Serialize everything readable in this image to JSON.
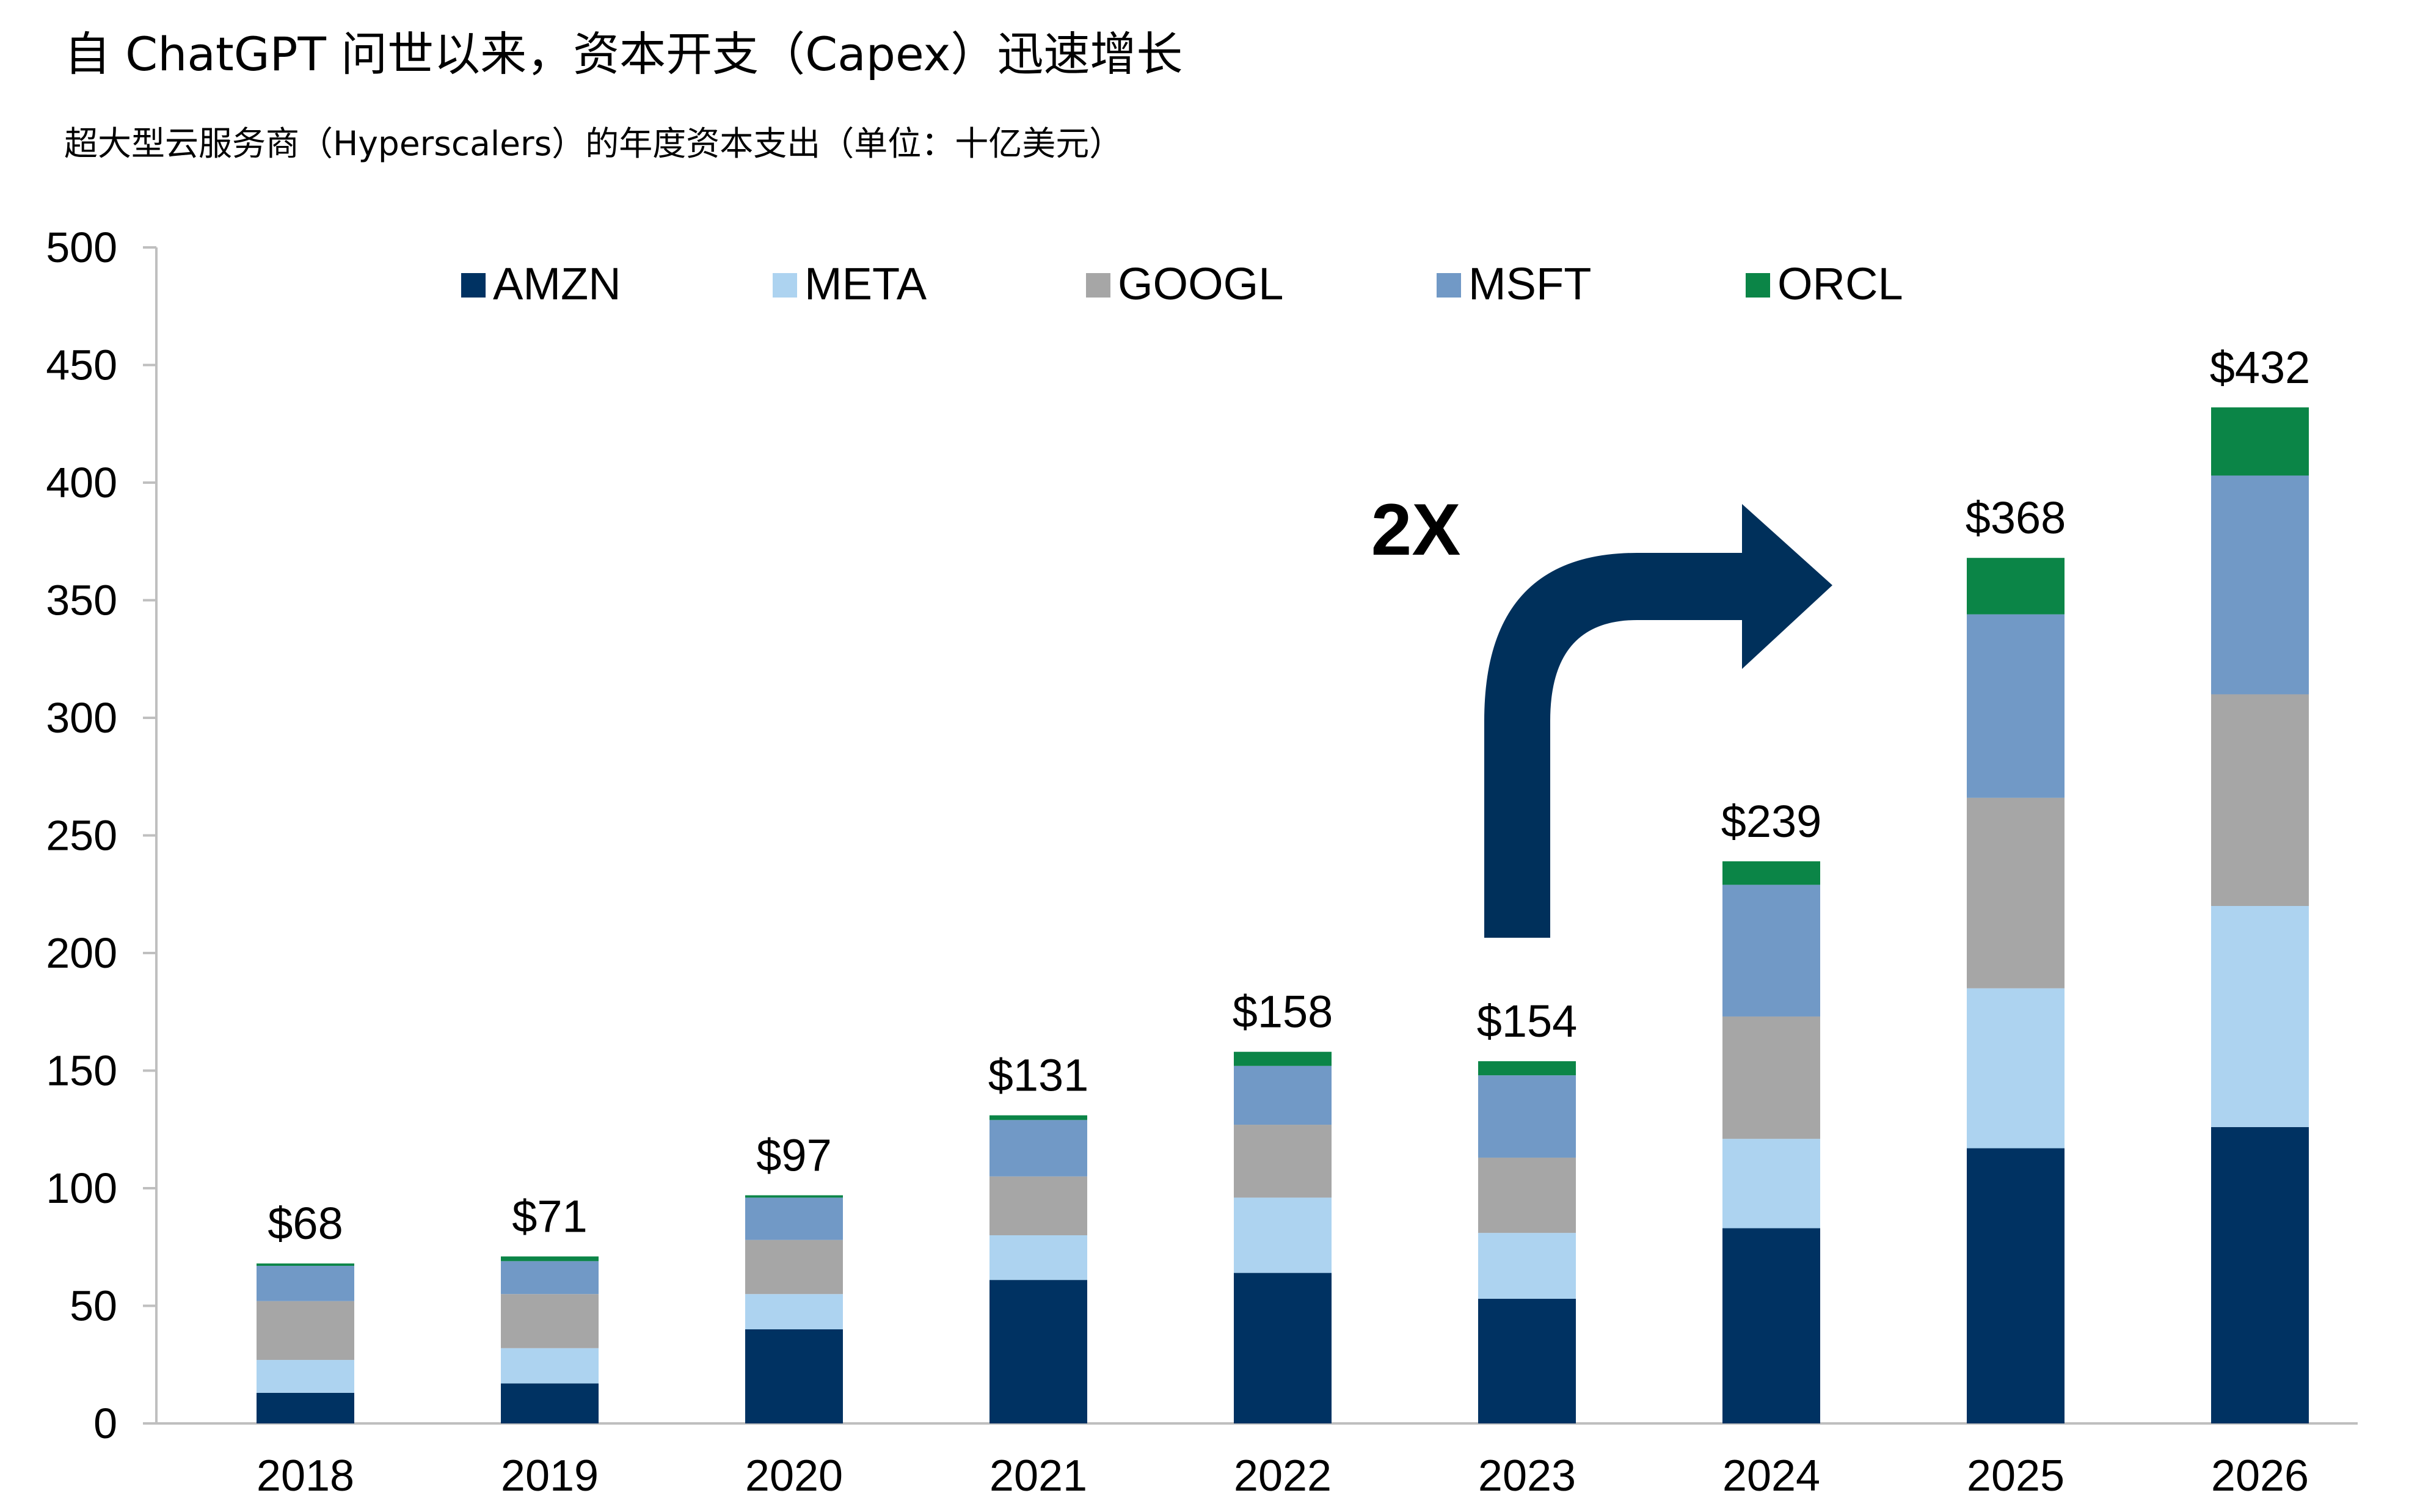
{
  "header": {
    "title": "自 ChatGPT 问世以来，资本开支（Capex）迅速增长",
    "subtitle": "超大型云服务商（Hyperscalers）的年度资本支出（单位：十亿美元）"
  },
  "annotation": {
    "multiplier_label": "2X"
  },
  "chart_data": {
    "type": "bar",
    "stacked": true,
    "categories": [
      "2018",
      "2019",
      "2020",
      "2021",
      "2022",
      "2023",
      "2024",
      "2025",
      "2026"
    ],
    "series": [
      {
        "name": "AMZN",
        "color": "#003262",
        "values": [
          13,
          17,
          40,
          61,
          64,
          53,
          83,
          117,
          126
        ]
      },
      {
        "name": "META",
        "color": "#add3f0",
        "values": [
          14,
          15,
          15,
          19,
          32,
          28,
          38,
          68,
          94
        ]
      },
      {
        "name": "GOOGL",
        "color": "#a6a6a6",
        "values": [
          25,
          23,
          23,
          25,
          31,
          32,
          52,
          81,
          90
        ]
      },
      {
        "name": "MSFT",
        "color": "#7199c6",
        "values": [
          15,
          14,
          18,
          24,
          25,
          35,
          56,
          78,
          93
        ]
      },
      {
        "name": "ORCL",
        "color": "#0b8547",
        "values": [
          1,
          2,
          1,
          2,
          6,
          6,
          10,
          24,
          29
        ]
      }
    ],
    "totals": [
      "$68",
      "$71",
      "$97",
      "$131",
      "$158",
      "$154",
      "$239",
      "$368",
      "$432"
    ],
    "ylim": [
      0,
      500
    ],
    "yticks": [
      0,
      50,
      100,
      150,
      200,
      250,
      300,
      350,
      400,
      450,
      500
    ],
    "grid": false,
    "legend": "top"
  }
}
